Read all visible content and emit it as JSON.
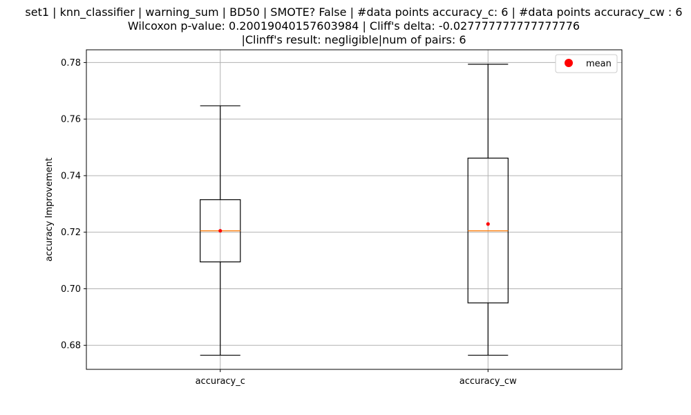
{
  "chart_data": {
    "type": "box",
    "title_lines": [
      "set1 | knn_classifier | warning_sum | BD50 | SMOTE? False | #data points accuracy_c: 6 | #data points accuracy_cw : 6",
      "Wilcoxon p-value: 0.20019040157603984 | Cliff's delta: -0.027777777777777776",
      "|Clinff's result: negligible|num of pairs: 6"
    ],
    "xlabel": "",
    "ylabel": "accuracy Improvement",
    "ylim": [
      0.6715,
      0.7845
    ],
    "yticks": [
      0.68,
      0.7,
      0.72,
      0.74,
      0.76,
      0.78
    ],
    "ytick_labels": [
      "0.68",
      "0.70",
      "0.72",
      "0.74",
      "0.76",
      "0.78"
    ],
    "grid": true,
    "legend": {
      "position": "top-right",
      "entries": [
        {
          "label": "mean",
          "color": "#ff0000"
        }
      ]
    },
    "colors": {
      "box": "#000000",
      "median": "#ff7f0e",
      "mean": "#ff0000",
      "grid": "#b0b0b0"
    },
    "categories": [
      "accuracy_c",
      "accuracy_cw"
    ],
    "boxes": [
      {
        "name": "accuracy_c",
        "whisker_low": 0.6765,
        "q1": 0.7095,
        "median": 0.7205,
        "q3": 0.7315,
        "whisker_high": 0.7647,
        "mean": 0.7205
      },
      {
        "name": "accuracy_cw",
        "whisker_low": 0.6765,
        "q1": 0.695,
        "median": 0.7205,
        "q3": 0.7462,
        "whisker_high": 0.7794,
        "mean": 0.7229
      }
    ]
  }
}
